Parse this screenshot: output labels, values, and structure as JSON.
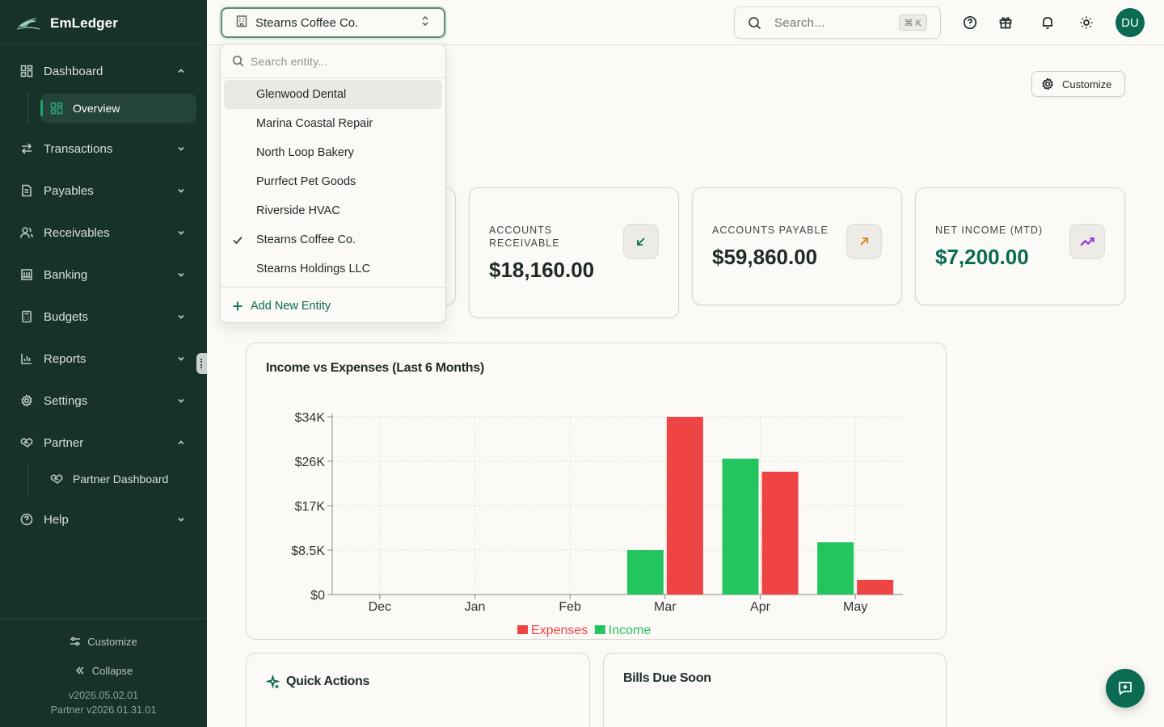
{
  "app": {
    "name": "EmLedger"
  },
  "sidebar": {
    "items": [
      {
        "label": "Dashboard",
        "icon": "dashboard-icon",
        "expanded": true
      },
      {
        "label": "Transactions",
        "icon": "transfer-icon",
        "expanded": false
      },
      {
        "label": "Payables",
        "icon": "document-icon",
        "expanded": false
      },
      {
        "label": "Receivables",
        "icon": "users-icon",
        "expanded": false
      },
      {
        "label": "Banking",
        "icon": "bank-icon",
        "expanded": false
      },
      {
        "label": "Budgets",
        "icon": "calculator-icon",
        "expanded": false
      },
      {
        "label": "Reports",
        "icon": "bar-chart-icon",
        "expanded": false
      },
      {
        "label": "Settings",
        "icon": "gear-icon",
        "expanded": false
      },
      {
        "label": "Partner",
        "icon": "handshake-icon",
        "expanded": true
      },
      {
        "label": "Help",
        "icon": "help-circle-icon",
        "expanded": false
      }
    ],
    "dashboard_sub": [
      {
        "label": "Overview",
        "active": true
      }
    ],
    "partner_sub": [
      {
        "label": "Partner Dashboard",
        "active": false
      }
    ],
    "footer": {
      "customize": "Customize",
      "collapse": "Collapse",
      "version": "v2026.05.02.01",
      "partner_version": "Partner v2026.01.31.01"
    }
  },
  "topbar": {
    "entity": "Stearns Coffee Co.",
    "search_placeholder": "Search...",
    "search_shortcut": "⌘ K",
    "avatar": "DU"
  },
  "entity_dropdown": {
    "placeholder": "Search entity...",
    "options": [
      {
        "label": "Glenwood Dental",
        "selected": false,
        "hover": true
      },
      {
        "label": "Marina Coastal Repair",
        "selected": false
      },
      {
        "label": "North Loop Bakery",
        "selected": false
      },
      {
        "label": "Purrfect Pet Goods",
        "selected": false
      },
      {
        "label": "Riverside HVAC",
        "selected": false
      },
      {
        "label": "Stearns Coffee Co.",
        "selected": true
      },
      {
        "label": "Stearns Holdings LLC",
        "selected": false
      }
    ],
    "add_label": "Add New Entity"
  },
  "main": {
    "customize_label": "Customize",
    "kpis": [
      {
        "label": "ACCOUNTS RECEIVABLE",
        "value": "$18,160.00",
        "icon": "arrow-down-left-icon",
        "color": "#0b6b52"
      },
      {
        "label": "ACCOUNTS PAYABLE",
        "value": "$59,860.00",
        "icon": "arrow-up-right-icon",
        "color": "#e07b1a"
      },
      {
        "label": "NET INCOME (MTD)",
        "value": "$7,200.00",
        "icon": "trending-up-icon",
        "color": "#9b3fd6",
        "value_color": "#0b6b52"
      }
    ],
    "quick_actions_title": "Quick Actions",
    "bills_title": "Bills Due Soon"
  },
  "chart_data": {
    "type": "bar",
    "title": "Income vs Expenses (Last 6 Months)",
    "categories": [
      "Dec",
      "Jan",
      "Feb",
      "Mar",
      "Apr",
      "May"
    ],
    "series": [
      {
        "name": "Income",
        "color": "#22c55e",
        "values": [
          0,
          0,
          0,
          8500,
          26000,
          10000
        ]
      },
      {
        "name": "Expenses",
        "color": "#ef4444",
        "values": [
          0,
          0,
          0,
          34000,
          23500,
          2800
        ]
      }
    ],
    "yticks": [
      "$0",
      "$8.5K",
      "$17K",
      "$26K",
      "$34K"
    ],
    "ytick_values": [
      0,
      8500,
      17000,
      25500,
      34000
    ],
    "ylim": [
      0,
      34000
    ],
    "grid": true,
    "legend_position": "bottom",
    "legend_order": [
      "Expenses",
      "Income"
    ]
  }
}
